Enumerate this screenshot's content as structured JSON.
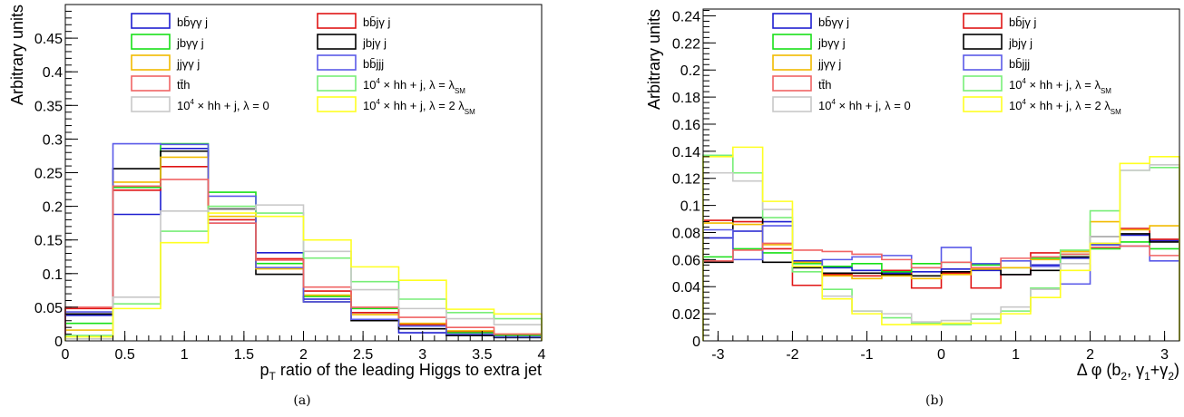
{
  "chart_data": [
    {
      "type": "histogram-step",
      "caption": "(a)",
      "ylabel": "Arbitrary units",
      "xlabel": "p_T ratio of the leading Higgs to extra jet",
      "xlim": [
        0,
        4
      ],
      "ylim": [
        0,
        0.5
      ],
      "x_ticks": [
        0,
        0.5,
        1,
        1.5,
        2,
        2.5,
        3,
        3.5,
        4
      ],
      "x_tick_labels": [
        "0",
        "0.5",
        "1",
        "1.5",
        "2",
        "2.5",
        "3",
        "3.5",
        "4"
      ],
      "y_ticks": [
        0,
        0.05,
        0.1,
        0.15,
        0.2,
        0.25,
        0.3,
        0.35,
        0.4,
        0.45
      ],
      "y_tick_labels": [
        "0",
        "0.05",
        "0.1",
        "0.15",
        "0.2",
        "0.25",
        "0.3",
        "0.35",
        "0.4",
        "0.45"
      ],
      "bin_edges": [
        0,
        0.4,
        0.8,
        1.2,
        1.6,
        2.0,
        2.4,
        2.8,
        3.2,
        3.6,
        4.0
      ],
      "series": [
        {
          "name": "bb̄γγ j",
          "color": "#1f1fd0",
          "values": [
            0.038,
            0.188,
            0.286,
            0.175,
            0.131,
            0.062,
            0.042,
            0.012,
            0.008,
            0.005
          ]
        },
        {
          "name": "bb̄jγ j",
          "color": "#e01515",
          "values": [
            0.048,
            0.224,
            0.259,
            0.18,
            0.122,
            0.074,
            0.042,
            0.024,
            0.013,
            0.008
          ]
        },
        {
          "name": "jbγγ j",
          "color": "#18e018",
          "values": [
            0.026,
            0.228,
            0.293,
            0.221,
            0.115,
            0.066,
            0.048,
            0.022,
            0.012,
            0.008
          ]
        },
        {
          "name": "jbjγ j",
          "color": "#000000",
          "values": [
            0.04,
            0.256,
            0.282,
            0.196,
            0.099,
            0.058,
            0.03,
            0.018,
            0.008,
            0.005
          ]
        },
        {
          "name": "jjγγ j",
          "color": "#f2bb00",
          "values": [
            0.016,
            0.236,
            0.273,
            0.185,
            0.107,
            0.068,
            0.039,
            0.026,
            0.015,
            0.01
          ]
        },
        {
          "name": "bb̄jjj",
          "color": "#5a5ae8",
          "values": [
            0.043,
            0.293,
            0.292,
            0.215,
            0.109,
            0.058,
            0.032,
            0.022,
            0.01,
            0.006
          ]
        },
        {
          "name": "tt̄h",
          "color": "#f06464",
          "values": [
            0.05,
            0.23,
            0.24,
            0.175,
            0.12,
            0.08,
            0.05,
            0.035,
            0.02,
            0.01
          ]
        },
        {
          "name": "10^4 × hh + j,  λ = λ_SM",
          "color": "#78ee78",
          "values": [
            0.008,
            0.055,
            0.163,
            0.2,
            0.19,
            0.123,
            0.088,
            0.062,
            0.042,
            0.033
          ]
        },
        {
          "name": "10^4 × hh + j,  λ = 0",
          "color": "#c8c8c8",
          "values": [
            0.003,
            0.065,
            0.193,
            0.195,
            0.202,
            0.133,
            0.076,
            0.048,
            0.033,
            0.024
          ]
        },
        {
          "name": "10^4 × hh + j,  λ = 2 λ_SM",
          "color": "#ffff22",
          "values": [
            0.006,
            0.048,
            0.146,
            0.19,
            0.185,
            0.15,
            0.11,
            0.09,
            0.047,
            0.04
          ]
        }
      ],
      "legend": {
        "column1": [
          "bb̄γγ j",
          "jbγγ j",
          "jjγγ j",
          "tt̄h",
          "10^4 × hh + j,  λ = 0"
        ],
        "column2": [
          "bb̄jγ j",
          "jbjγ j",
          "bb̄jjj",
          "10^4 × hh + j,  λ = λ_SM",
          "10^4 × hh + j,  λ = 2 λ_SM"
        ]
      }
    },
    {
      "type": "histogram-step",
      "caption": "(b)",
      "ylabel": "Arbitrary units",
      "xlabel": "Δ φ (b_2, γ_1+γ_2)",
      "xlim": [
        -3.2,
        3.2
      ],
      "ylim": [
        0,
        0.245
      ],
      "x_ticks": [
        -3,
        -2,
        -1,
        0,
        1,
        2,
        3
      ],
      "x_tick_labels": [
        "-3",
        "-2",
        "-1",
        "0",
        "1",
        "2",
        "3"
      ],
      "y_ticks": [
        0,
        0.02,
        0.04,
        0.06,
        0.08,
        0.1,
        0.12,
        0.14,
        0.16,
        0.18,
        0.2,
        0.22,
        0.24
      ],
      "y_tick_labels": [
        "0",
        "0.02",
        "0.04",
        "0.06",
        "0.08",
        "0.1",
        "0.12",
        "0.14",
        "0.16",
        "0.18",
        "0.2",
        "0.22",
        "0.24"
      ],
      "bin_edges": [
        -3.2,
        -2.8,
        -2.4,
        -2.0,
        -1.6,
        -1.2,
        -0.8,
        -0.4,
        0.0,
        0.4,
        0.8,
        1.2,
        1.6,
        2.0,
        2.4,
        2.8,
        3.2
      ],
      "series": [
        {
          "name": "bb̄γγ j",
          "color": "#1f1fd0",
          "values": [
            0.076,
            0.081,
            0.088,
            0.059,
            0.054,
            0.052,
            0.05,
            0.051,
            0.053,
            0.052,
            0.049,
            0.056,
            0.061,
            0.071,
            0.078,
            0.074
          ]
        },
        {
          "name": "bb̄jγ j",
          "color": "#e01515",
          "values": [
            0.089,
            0.088,
            0.068,
            0.041,
            0.049,
            0.048,
            0.052,
            0.039,
            0.05,
            0.039,
            0.049,
            0.065,
            0.066,
            0.069,
            0.083,
            0.075
          ]
        },
        {
          "name": "jbγγ j",
          "color": "#18e018",
          "values": [
            0.062,
            0.068,
            0.065,
            0.057,
            0.055,
            0.057,
            0.051,
            0.057,
            0.058,
            0.056,
            0.054,
            0.061,
            0.064,
            0.068,
            0.073,
            0.068
          ]
        },
        {
          "name": "jbjγ j",
          "color": "#000000",
          "values": [
            0.058,
            0.091,
            0.058,
            0.054,
            0.05,
            0.05,
            0.049,
            0.048,
            0.051,
            0.053,
            0.049,
            0.052,
            0.062,
            0.077,
            0.079,
            0.073
          ]
        },
        {
          "name": "jjγγ j",
          "color": "#f2bb00",
          "values": [
            0.087,
            0.086,
            0.071,
            0.058,
            0.048,
            0.046,
            0.048,
            0.046,
            0.049,
            0.053,
            0.054,
            0.06,
            0.066,
            0.088,
            0.082,
            0.085
          ]
        },
        {
          "name": "bb̄jjj",
          "color": "#5a5ae8",
          "values": [
            0.082,
            0.06,
            0.085,
            0.055,
            0.06,
            0.062,
            0.063,
            0.054,
            0.069,
            0.057,
            0.059,
            0.055,
            0.042,
            0.072,
            0.07,
            0.059
          ]
        },
        {
          "name": "tt̄h",
          "color": "#f06464",
          "values": [
            0.059,
            0.067,
            0.072,
            0.067,
            0.066,
            0.064,
            0.06,
            0.054,
            0.058,
            0.054,
            0.061,
            0.062,
            0.064,
            0.069,
            0.07,
            0.063
          ]
        },
        {
          "name": "10^4 × hh + j,  λ = λ_SM",
          "color": "#78ee78",
          "values": [
            0.137,
            0.124,
            0.091,
            0.051,
            0.038,
            0.022,
            0.017,
            0.013,
            0.012,
            0.016,
            0.022,
            0.039,
            0.067,
            0.096,
            0.126,
            0.128
          ]
        },
        {
          "name": "10^4 × hh + j,  λ = 0",
          "color": "#c8c8c8",
          "values": [
            0.124,
            0.118,
            0.097,
            0.055,
            0.033,
            0.022,
            0.02,
            0.014,
            0.015,
            0.02,
            0.025,
            0.038,
            0.057,
            0.077,
            0.126,
            0.13
          ]
        },
        {
          "name": "10^4 × hh + j,  λ = 2 λ_SM",
          "color": "#ffff22",
          "values": [
            0.136,
            0.143,
            0.103,
            0.055,
            0.031,
            0.02,
            0.012,
            0.012,
            0.013,
            0.013,
            0.02,
            0.032,
            0.052,
            0.072,
            0.131,
            0.136
          ]
        }
      ],
      "legend": {
        "column1": [
          "bb̄γγ j",
          "jbγγ j",
          "jjγγ j",
          "tt̄h",
          "10^4 × hh + j,  λ = 0"
        ],
        "column2": [
          "bb̄jγ j",
          "jbjγ j",
          "bb̄jjj",
          "10^4 × hh + j,  λ = λ_SM",
          "10^4 × hh + j,  λ = 2 λ_SM"
        ]
      }
    }
  ]
}
